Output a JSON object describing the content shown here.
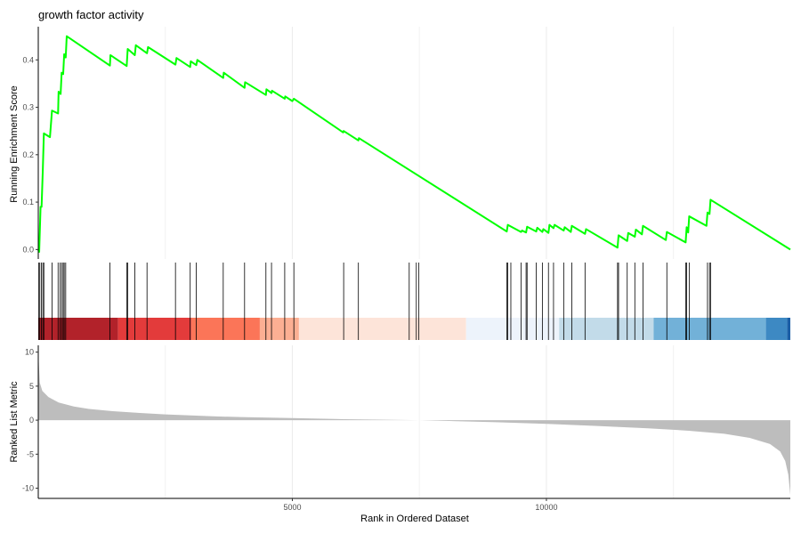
{
  "chart_data": {
    "type": "gsea",
    "title": "growth factor activity",
    "xlabel": "Rank in Ordered Dataset",
    "xlim": [
      0,
      14800
    ],
    "x_ticks": [
      5000,
      10000
    ],
    "grid": "vertical-only",
    "panels": [
      {
        "name": "running-score",
        "type": "line",
        "ylabel": "Running Enrichment Score",
        "ylim": [
          -0.02,
          0.47
        ],
        "y_ticks": [
          0.0,
          0.1,
          0.2,
          0.3,
          0.4
        ],
        "line_color": "#00ff00",
        "points": [
          [
            0,
            0.0
          ],
          [
            18,
            -0.005
          ],
          [
            45,
            0.09
          ],
          [
            65,
            0.09
          ],
          [
            90,
            0.17
          ],
          [
            110,
            0.245
          ],
          [
            230,
            0.237
          ],
          [
            270,
            0.293
          ],
          [
            390,
            0.287
          ],
          [
            400,
            0.333
          ],
          [
            440,
            0.328
          ],
          [
            460,
            0.373
          ],
          [
            490,
            0.37
          ],
          [
            510,
            0.412
          ],
          [
            540,
            0.405
          ],
          [
            560,
            0.45
          ],
          [
            1410,
            0.388
          ],
          [
            1420,
            0.41
          ],
          [
            1740,
            0.387
          ],
          [
            1760,
            0.423
          ],
          [
            1900,
            0.41
          ],
          [
            1920,
            0.431
          ],
          [
            2140,
            0.414
          ],
          [
            2160,
            0.427
          ],
          [
            2700,
            0.39
          ],
          [
            2720,
            0.404
          ],
          [
            2990,
            0.385
          ],
          [
            3000,
            0.397
          ],
          [
            3110,
            0.389
          ],
          [
            3130,
            0.4
          ],
          [
            3640,
            0.362
          ],
          [
            3650,
            0.373
          ],
          [
            4060,
            0.341
          ],
          [
            4070,
            0.353
          ],
          [
            4480,
            0.326
          ],
          [
            4490,
            0.338
          ],
          [
            4590,
            0.33
          ],
          [
            4600,
            0.335
          ],
          [
            4850,
            0.318
          ],
          [
            4860,
            0.323
          ],
          [
            5000,
            0.313
          ],
          [
            5030,
            0.318
          ],
          [
            6000,
            0.247
          ],
          [
            6010,
            0.25
          ],
          [
            6300,
            0.23
          ],
          [
            6310,
            0.235
          ],
          [
            9220,
            0.038
          ],
          [
            9240,
            0.052
          ],
          [
            9500,
            0.037
          ],
          [
            9520,
            0.04
          ],
          [
            9600,
            0.036
          ],
          [
            9620,
            0.048
          ],
          [
            9800,
            0.038
          ],
          [
            9820,
            0.046
          ],
          [
            9920,
            0.037
          ],
          [
            9940,
            0.043
          ],
          [
            10040,
            0.035
          ],
          [
            10060,
            0.052
          ],
          [
            10140,
            0.045
          ],
          [
            10160,
            0.052
          ],
          [
            10340,
            0.04
          ],
          [
            10360,
            0.047
          ],
          [
            10480,
            0.037
          ],
          [
            10500,
            0.05
          ],
          [
            10760,
            0.033
          ],
          [
            10780,
            0.043
          ],
          [
            11400,
            0.004
          ],
          [
            11420,
            0.03
          ],
          [
            11590,
            0.018
          ],
          [
            11610,
            0.035
          ],
          [
            11740,
            0.027
          ],
          [
            11760,
            0.042
          ],
          [
            11880,
            0.032
          ],
          [
            11900,
            0.05
          ],
          [
            12350,
            0.02
          ],
          [
            12370,
            0.037
          ],
          [
            12740,
            0.015
          ],
          [
            12760,
            0.047
          ],
          [
            12790,
            0.036
          ],
          [
            12810,
            0.07
          ],
          [
            13150,
            0.05
          ],
          [
            13170,
            0.078
          ],
          [
            13210,
            0.075
          ],
          [
            13230,
            0.105
          ],
          [
            14800,
            0.0
          ]
        ]
      },
      {
        "name": "hit-ticks",
        "type": "rug",
        "positions": [
          10,
          30,
          60,
          90,
          110,
          270,
          390,
          430,
          460,
          490,
          510,
          540,
          1410,
          1740,
          1760,
          1900,
          2140,
          2700,
          2990,
          3110,
          3640,
          4060,
          4480,
          4590,
          4850,
          5030,
          6010,
          6300,
          7300,
          7440,
          7490,
          9220,
          9240,
          9300,
          9500,
          9600,
          9620,
          9800,
          9920,
          10040,
          10140,
          10340,
          10500,
          10760,
          11400,
          11420,
          11590,
          11740,
          11900,
          12370,
          12740,
          12760,
          12810,
          13170,
          13210,
          13230
        ]
      },
      {
        "name": "rank-heat-bar",
        "type": "heatmap",
        "segments": [
          {
            "from": 0,
            "to": 1570,
            "color": "#b2222a"
          },
          {
            "from": 1570,
            "to": 3010,
            "color": "#e33b3b"
          },
          {
            "from": 3010,
            "to": 4360,
            "color": "#fb7558"
          },
          {
            "from": 4360,
            "to": 5130,
            "color": "#fcaf93"
          },
          {
            "from": 5130,
            "to": 8420,
            "color": "#fde4d9"
          },
          {
            "from": 8420,
            "to": 10250,
            "color": "#edf3fb"
          },
          {
            "from": 10250,
            "to": 12110,
            "color": "#c2dbe9"
          },
          {
            "from": 12110,
            "to": 14320,
            "color": "#72b1d8"
          },
          {
            "from": 14320,
            "to": 14740,
            "color": "#3d89c3"
          },
          {
            "from": 14740,
            "to": 14800,
            "color": "#1b5ea6"
          }
        ]
      },
      {
        "name": "ranked-list-metric",
        "type": "area",
        "ylabel": "Ranked List Metric",
        "ylim": [
          -11.5,
          11
        ],
        "y_ticks": [
          10,
          5,
          0,
          -5,
          -10
        ],
        "fill_color": "#bdbdbd",
        "points": [
          [
            0,
            10
          ],
          [
            30,
            5.5
          ],
          [
            80,
            4.3
          ],
          [
            200,
            3.4
          ],
          [
            400,
            2.6
          ],
          [
            700,
            2.0
          ],
          [
            1000,
            1.65
          ],
          [
            1500,
            1.3
          ],
          [
            2000,
            1.05
          ],
          [
            2500,
            0.85
          ],
          [
            3000,
            0.7
          ],
          [
            3500,
            0.55
          ],
          [
            4000,
            0.45
          ],
          [
            5000,
            0.3
          ],
          [
            6000,
            0.15
          ],
          [
            7000,
            0.05
          ],
          [
            7500,
            0.0
          ],
          [
            8000,
            -0.1
          ],
          [
            9000,
            -0.3
          ],
          [
            10000,
            -0.55
          ],
          [
            11000,
            -0.85
          ],
          [
            12000,
            -1.2
          ],
          [
            12800,
            -1.55
          ],
          [
            13500,
            -2.0
          ],
          [
            14000,
            -2.6
          ],
          [
            14400,
            -3.5
          ],
          [
            14600,
            -4.6
          ],
          [
            14700,
            -6.0
          ],
          [
            14760,
            -8.0
          ],
          [
            14800,
            -11.0
          ]
        ]
      }
    ]
  }
}
